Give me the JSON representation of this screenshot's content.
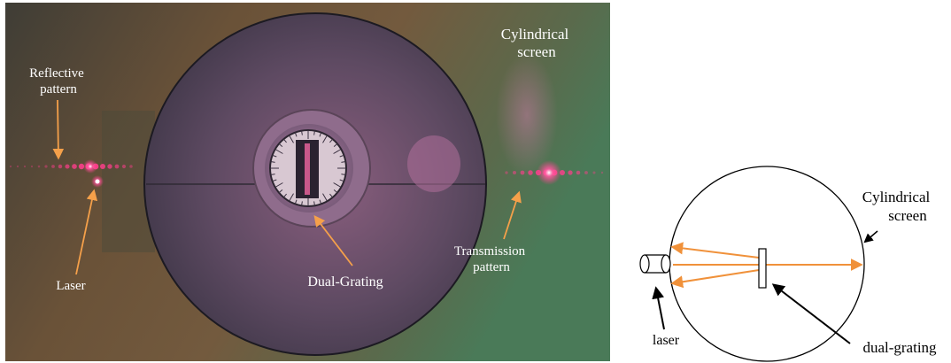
{
  "photo": {
    "labels": {
      "reflective_line1": "Reflective",
      "reflective_line2": "pattern",
      "cylindrical_line1": "Cylindrical",
      "cylindrical_line2": "screen",
      "laser": "Laser",
      "dual_grating": "Dual-Grating",
      "transmission_line1": "Transmission",
      "transmission_line2": "pattern"
    }
  },
  "diagram": {
    "labels": {
      "cylindrical_line1": "Cylindrical",
      "cylindrical_line2": "screen",
      "laser": "laser",
      "dual_grating": "dual-grating"
    }
  },
  "colors": {
    "annotation_arrow": "#f5a04a",
    "beam": "#f0913a",
    "laser_spot": "#ff3d8c"
  }
}
